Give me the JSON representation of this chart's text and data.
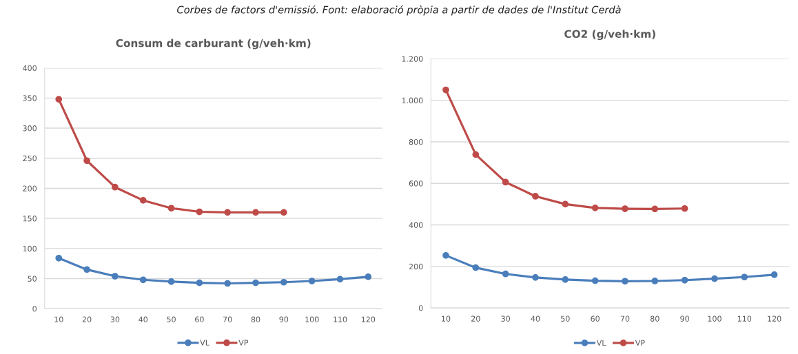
{
  "chart_data": [
    {
      "type": "line",
      "title": "Consum de carburant (g/veh·km)",
      "annotations": [
        "Corbes de factors d'emissió. Font: elaboració pròpia a partir de dades de l'Institut Cerdà"
      ],
      "categories": [
        "10",
        "20",
        "30",
        "40",
        "50",
        "60",
        "70",
        "80",
        "90",
        "100",
        "110",
        "120"
      ],
      "series": [
        {
          "name": "VL",
          "color": "#4a7ebb",
          "values": [
            84,
            65,
            54,
            48,
            45,
            43,
            42,
            43,
            44,
            46,
            49,
            53
          ]
        },
        {
          "name": "VP",
          "color": "#be4b48",
          "values": [
            348,
            246,
            202,
            180,
            167,
            161,
            160,
            160,
            160,
            null,
            null,
            null
          ]
        }
      ],
      "ylim": [
        0,
        400
      ],
      "yticks": [
        0,
        50,
        100,
        150,
        200,
        250,
        300,
        350,
        400
      ],
      "grid": "y",
      "legend": "bottom",
      "marker": "circle",
      "line_style": "solid"
    },
    {
      "type": "line",
      "title": "CO2 (g/veh·km)",
      "categories": [
        "10",
        "20",
        "30",
        "40",
        "50",
        "60",
        "70",
        "80",
        "90",
        "100",
        "110",
        "120"
      ],
      "series": [
        {
          "name": "VL",
          "color": "#4a7ebb",
          "values": [
            253,
            194,
            164,
            147,
            137,
            131,
            129,
            130,
            134,
            141,
            149,
            160
          ]
        },
        {
          "name": "VP",
          "color": "#be4b48",
          "values": [
            1050,
            739,
            606,
            538,
            500,
            482,
            478,
            477,
            479,
            null,
            null,
            null
          ]
        }
      ],
      "ylim": [
        0,
        1200
      ],
      "yticks": [
        0,
        200,
        400,
        600,
        800,
        {
          "value": 1000,
          "label": "1.000"
        },
        {
          "value": 1200,
          "label": "1.200"
        }
      ],
      "grid": "y",
      "legend": "bottom",
      "marker": "circle",
      "line_style": "solid"
    }
  ]
}
